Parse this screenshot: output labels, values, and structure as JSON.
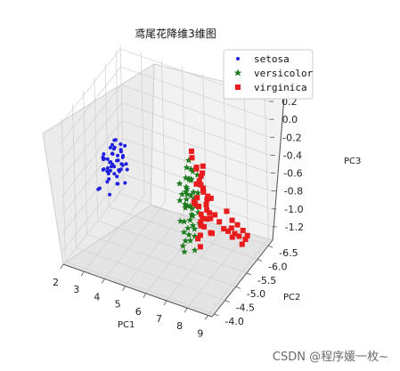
{
  "watermark": "CSDN @程序媛一枚~",
  "chart_data": {
    "type": "scatter",
    "projection": "3d",
    "title": "鸢尾花降维3维图",
    "xlabel": "PC1",
    "ylabel": "PC2",
    "zlabel": "PC3",
    "xticks": [
      "2",
      "3",
      "4",
      "5",
      "6",
      "7",
      "8",
      "9"
    ],
    "yticks": [
      "-4.0",
      "-4.5",
      "-5.0",
      "-5.5",
      "-6.0",
      "-6.5"
    ],
    "zticks": [
      "0.2",
      "0.0",
      "-0.2",
      "-0.4",
      "-0.6",
      "-0.8",
      "-1.0",
      "-1.2"
    ],
    "xlim": [
      2,
      9.2
    ],
    "ylim": [
      -6.7,
      -3.9
    ],
    "zlim": [
      -1.35,
      0.25
    ],
    "grid": true,
    "legend_position": "top-right",
    "series": [
      {
        "name": "setosa",
        "marker": "dot",
        "color": "#1f1fe0",
        "points": [
          [
            2.6,
            -5.3,
            -0.55
          ],
          [
            2.8,
            -5.4,
            -0.6
          ],
          [
            2.7,
            -5.5,
            -0.48
          ],
          [
            3.0,
            -5.2,
            -0.62
          ],
          [
            3.1,
            -5.6,
            -0.5
          ],
          [
            2.9,
            -5.0,
            -0.55
          ],
          [
            3.2,
            -5.3,
            -0.7
          ],
          [
            2.75,
            -5.7,
            -0.45
          ],
          [
            3.05,
            -5.45,
            -0.58
          ],
          [
            3.3,
            -5.1,
            -0.52
          ],
          [
            2.85,
            -5.25,
            -0.68
          ],
          [
            3.15,
            -5.55,
            -0.42
          ],
          [
            2.95,
            -5.35,
            -0.6
          ],
          [
            3.4,
            -5.4,
            -0.5
          ],
          [
            2.7,
            -5.15,
            -0.62
          ],
          [
            3.0,
            -5.6,
            -0.75
          ],
          [
            3.2,
            -5.0,
            -0.45
          ],
          [
            2.6,
            -5.45,
            -0.7
          ],
          [
            3.35,
            -5.25,
            -0.6
          ],
          [
            2.9,
            -5.5,
            -0.38
          ],
          [
            3.1,
            -5.15,
            -0.55
          ],
          [
            2.8,
            -5.6,
            -0.5
          ],
          [
            3.25,
            -5.45,
            -0.66
          ],
          [
            3.0,
            -5.3,
            -0.46
          ],
          [
            2.65,
            -5.2,
            -0.5
          ],
          [
            3.5,
            -5.3,
            -0.55
          ],
          [
            2.75,
            -5.35,
            -0.78
          ],
          [
            3.45,
            -5.5,
            -0.6
          ],
          [
            2.95,
            -5.1,
            -0.6
          ],
          [
            3.15,
            -5.35,
            -0.8
          ],
          [
            2.7,
            -5.6,
            -0.58
          ],
          [
            3.05,
            -5.0,
            -0.68
          ],
          [
            3.3,
            -5.6,
            -0.44
          ],
          [
            2.85,
            -5.45,
            -0.42
          ],
          [
            3.2,
            -5.2,
            -0.36
          ],
          [
            2.55,
            -5.5,
            -0.62
          ],
          [
            3.4,
            -5.15,
            -0.72
          ],
          [
            2.9,
            -5.65,
            -0.65
          ],
          [
            3.1,
            -5.45,
            -0.52
          ],
          [
            3.55,
            -5.2,
            -0.5
          ],
          [
            2.35,
            -5.3,
            -0.9
          ],
          [
            2.6,
            -5.0,
            -0.8
          ],
          [
            3.0,
            -5.7,
            -0.56
          ],
          [
            2.8,
            -5.1,
            -0.42
          ],
          [
            3.25,
            -5.55,
            -0.54
          ],
          [
            3.6,
            -5.4,
            -0.62
          ],
          [
            2.45,
            -5.4,
            -0.6
          ],
          [
            3.35,
            -5.05,
            -0.58
          ],
          [
            3.7,
            -5.2,
            -0.7
          ],
          [
            2.5,
            -5.6,
            -1.05
          ]
        ]
      },
      {
        "name": "versicolor",
        "marker": "star",
        "color": "#1e7d1e",
        "points": [
          [
            6.4,
            -5.5,
            -0.4
          ],
          [
            6.6,
            -5.4,
            -0.48
          ],
          [
            6.5,
            -5.6,
            -0.55
          ],
          [
            6.8,
            -5.3,
            -0.45
          ],
          [
            6.3,
            -5.7,
            -0.6
          ],
          [
            6.7,
            -5.5,
            -0.65
          ],
          [
            6.9,
            -5.2,
            -0.58
          ],
          [
            6.2,
            -5.45,
            -0.7
          ],
          [
            6.55,
            -5.25,
            -0.72
          ],
          [
            6.75,
            -5.65,
            -0.5
          ],
          [
            6.45,
            -5.35,
            -0.8
          ],
          [
            6.85,
            -5.45,
            -0.78
          ],
          [
            6.35,
            -5.55,
            -0.85
          ],
          [
            6.6,
            -5.15,
            -0.88
          ],
          [
            6.95,
            -5.35,
            -0.66
          ],
          [
            6.25,
            -5.3,
            -0.95
          ],
          [
            6.5,
            -5.5,
            -0.98
          ],
          [
            6.7,
            -5.25,
            -1.05
          ],
          [
            6.4,
            -5.7,
            -1.0
          ],
          [
            6.8,
            -5.6,
            -0.9
          ],
          [
            6.3,
            -5.4,
            -1.1
          ],
          [
            6.65,
            -5.35,
            -1.15
          ],
          [
            6.9,
            -5.55,
            -1.0
          ],
          [
            6.55,
            -5.65,
            -1.2
          ],
          [
            6.2,
            -5.55,
            -1.25
          ],
          [
            6.45,
            -5.2,
            -1.18
          ],
          [
            6.75,
            -5.45,
            -1.28
          ],
          [
            6.35,
            -5.35,
            -1.3
          ],
          [
            6.6,
            -5.6,
            -1.1
          ],
          [
            6.85,
            -5.3,
            -0.95
          ],
          [
            6.5,
            -5.4,
            -0.6
          ],
          [
            6.3,
            -5.25,
            -0.7
          ],
          [
            6.95,
            -5.5,
            -0.8
          ],
          [
            6.7,
            -5.7,
            -0.72
          ],
          [
            6.4,
            -5.45,
            -0.5
          ],
          [
            6.55,
            -5.55,
            -0.42
          ],
          [
            6.8,
            -5.4,
            -0.38
          ],
          [
            6.25,
            -5.6,
            -0.66
          ],
          [
            6.65,
            -5.2,
            -0.56
          ],
          [
            6.45,
            -5.65,
            -0.9
          ],
          [
            6.75,
            -5.35,
            -0.85
          ],
          [
            6.35,
            -5.5,
            -0.76
          ],
          [
            6.9,
            -5.65,
            -0.6
          ],
          [
            6.6,
            -5.3,
            -0.62
          ],
          [
            6.5,
            -5.7,
            -0.8
          ],
          [
            6.2,
            -5.35,
            -0.55
          ],
          [
            6.85,
            -5.2,
            -0.7
          ],
          [
            6.4,
            -5.6,
            -0.35
          ],
          [
            6.7,
            -5.45,
            -0.9
          ],
          [
            6.55,
            -5.35,
            -1.02
          ]
        ]
      },
      {
        "name": "virginica",
        "marker": "square",
        "color": "#e81c1c",
        "points": [
          [
            7.2,
            -5.0,
            0.0
          ],
          [
            7.0,
            -5.2,
            -0.15
          ],
          [
            7.3,
            -5.1,
            -0.22
          ],
          [
            7.1,
            -5.3,
            -0.28
          ],
          [
            7.4,
            -5.0,
            -0.35
          ],
          [
            7.2,
            -5.4,
            -0.4
          ],
          [
            7.5,
            -5.2,
            -0.45
          ],
          [
            7.0,
            -5.5,
            -0.5
          ],
          [
            7.35,
            -5.35,
            -0.55
          ],
          [
            7.15,
            -5.1,
            -0.6
          ],
          [
            7.45,
            -5.45,
            -0.62
          ],
          [
            7.05,
            -5.25,
            -0.68
          ],
          [
            7.3,
            -5.55,
            -0.7
          ],
          [
            7.55,
            -5.3,
            -0.72
          ],
          [
            7.2,
            -5.6,
            -0.78
          ],
          [
            7.4,
            -5.15,
            -0.82
          ],
          [
            7.1,
            -5.45,
            -0.85
          ],
          [
            7.5,
            -5.5,
            -0.88
          ],
          [
            7.25,
            -5.3,
            -0.92
          ],
          [
            7.0,
            -5.6,
            -0.95
          ],
          [
            7.35,
            -5.05,
            -0.98
          ],
          [
            7.6,
            -5.4,
            -1.0
          ],
          [
            7.15,
            -5.35,
            -1.05
          ],
          [
            7.45,
            -5.6,
            -1.08
          ],
          [
            7.3,
            -5.2,
            -1.12
          ],
          [
            7.55,
            -5.5,
            -0.65
          ],
          [
            7.05,
            -5.4,
            -0.75
          ],
          [
            7.4,
            -5.3,
            -0.5
          ],
          [
            7.2,
            -5.2,
            -0.58
          ],
          [
            7.6,
            -5.25,
            -0.8
          ],
          [
            7.1,
            -5.55,
            -0.42
          ],
          [
            7.5,
            -5.1,
            -0.38
          ],
          [
            7.25,
            -5.45,
            -0.3
          ],
          [
            7.35,
            -5.6,
            -0.86
          ],
          [
            7.45,
            -5.25,
            -0.9
          ],
          [
            7.7,
            -5.9,
            -1.1
          ],
          [
            7.8,
            -6.0,
            -1.15
          ],
          [
            7.9,
            -6.1,
            -1.05
          ],
          [
            8.0,
            -6.0,
            -1.2
          ],
          [
            7.75,
            -6.2,
            -1.18
          ],
          [
            8.1,
            -6.15,
            -1.1
          ],
          [
            7.85,
            -6.25,
            -1.25
          ],
          [
            8.2,
            -6.3,
            -1.2
          ],
          [
            7.95,
            -6.35,
            -1.3
          ],
          [
            8.3,
            -6.4,
            -1.28
          ],
          [
            7.6,
            -5.8,
            -1.0
          ],
          [
            8.15,
            -6.45,
            -1.35
          ],
          [
            7.7,
            -6.05,
            -0.95
          ],
          [
            8.25,
            -6.2,
            -1.32
          ],
          [
            7.5,
            -5.7,
            -0.9
          ]
        ]
      }
    ]
  }
}
